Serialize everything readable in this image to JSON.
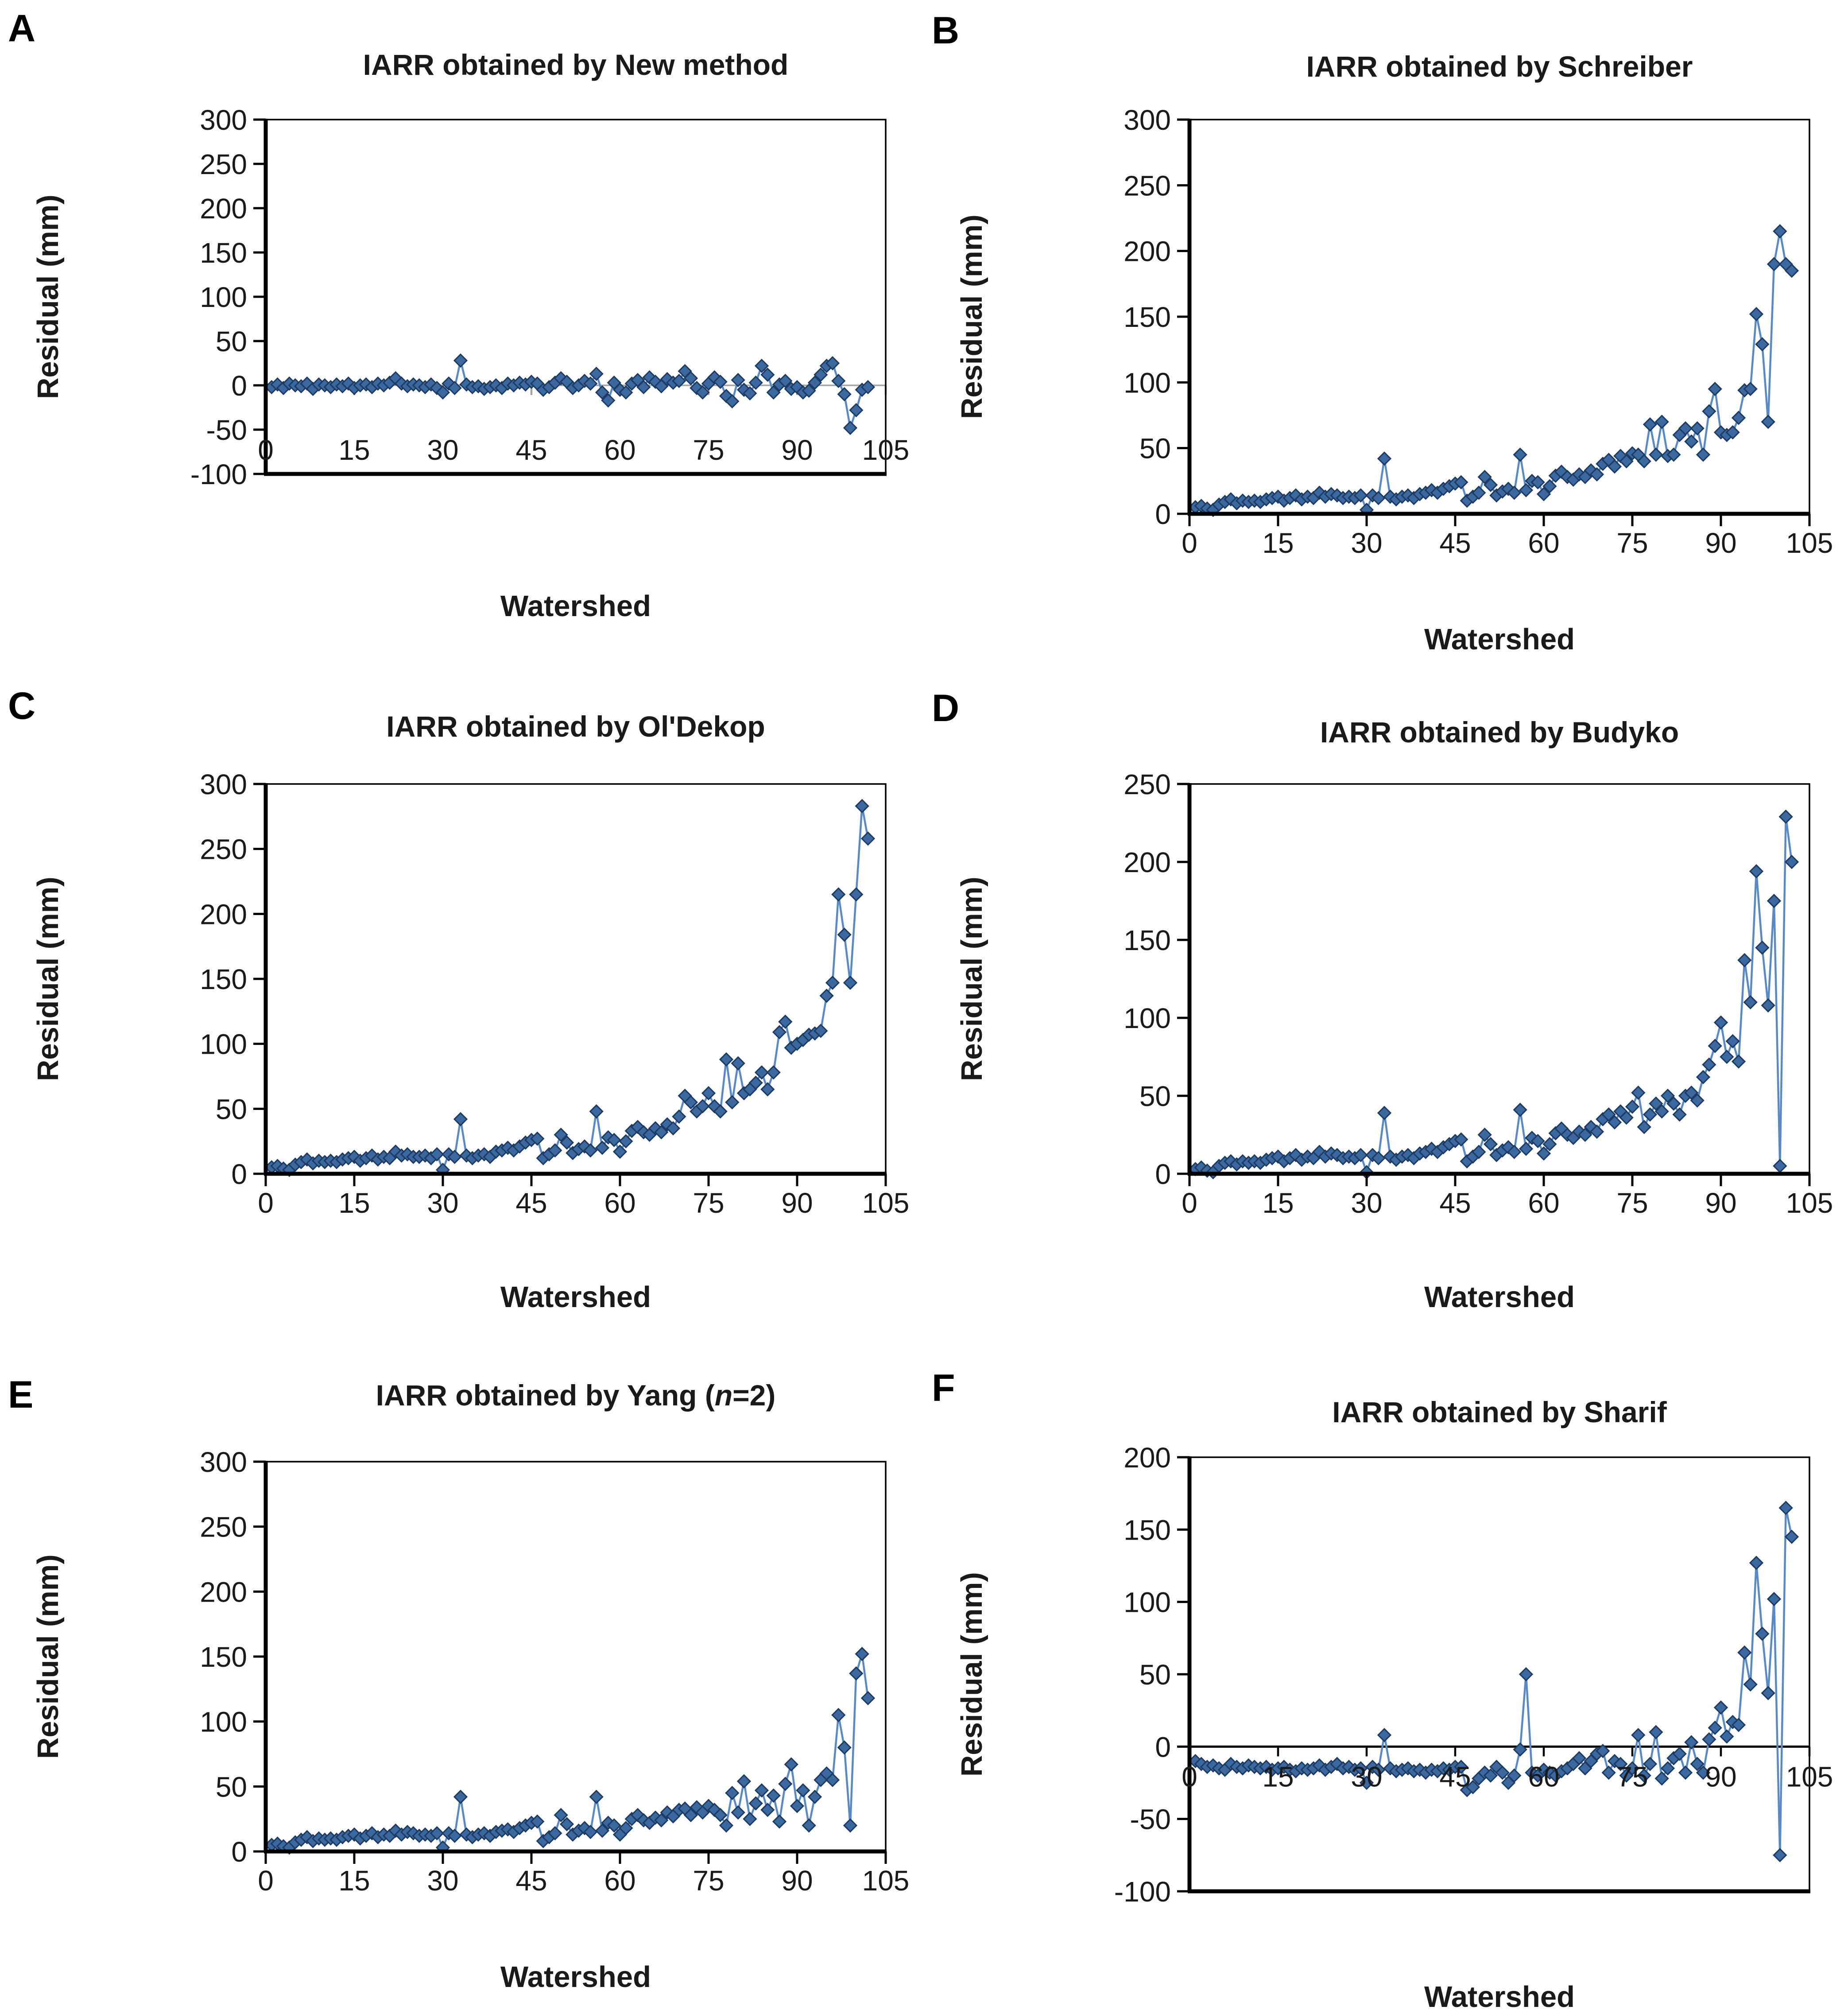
{
  "figure": {
    "type": "multi-panel residual plots",
    "panels_count": 6,
    "xlabel_shared": "Watershed",
    "ylabel_shared": "Residual (mm)"
  },
  "chart_style": {
    "line_color": "#5A8AC6",
    "marker_fill": "#3A689F",
    "marker_border": "#1D3A63",
    "marker_shape": "diamond",
    "axis_color": "#000000",
    "text_color": "#1a1a1a",
    "zero_line_gray": "#A6A6A6",
    "background": "#ffffff"
  },
  "chart_data": [
    {
      "panel": "A",
      "type": "line",
      "title": "IARR obtained by New method",
      "ylabel": "Residual (mm)",
      "xlabel": "Watershed",
      "ylim": [
        -100,
        300
      ],
      "yticks": [
        300,
        250,
        200,
        150,
        100,
        50,
        0,
        -50,
        -100
      ],
      "xlim": [
        0,
        105
      ],
      "xticks": [
        0,
        15,
        30,
        45,
        60,
        75,
        90,
        105
      ],
      "grid": false,
      "legend": false,
      "zero_line": true,
      "zero_line_color": "#A6A6A6",
      "x_label_mode": "inside-bottom",
      "x_start": 1,
      "x_step": 1,
      "values": [
        -2,
        1,
        -3,
        2,
        0,
        -1,
        2,
        -4,
        1,
        0,
        -2,
        1,
        -1,
        2,
        -3,
        0,
        1,
        -2,
        2,
        0,
        3,
        8,
        2,
        -1,
        1,
        0,
        -2,
        1,
        -3,
        -8,
        2,
        -3,
        28,
        1,
        -2,
        -1,
        -4,
        -2,
        0,
        -3,
        2,
        0,
        3,
        1,
        4,
        2,
        -5,
        -2,
        3,
        8,
        4,
        -3,
        0,
        5,
        2,
        13,
        -8,
        -17,
        3,
        -5,
        -8,
        2,
        6,
        -2,
        9,
        4,
        -1,
        7,
        3,
        5,
        16,
        8,
        -3,
        -8,
        2,
        9,
        4,
        -12,
        -18,
        6,
        -5,
        -9,
        3,
        22,
        12,
        -8,
        1,
        5,
        -4,
        -2,
        -8,
        -6,
        3,
        12,
        22,
        25,
        5,
        -10,
        -48,
        -28,
        -5,
        -2
      ]
    },
    {
      "panel": "B",
      "type": "line",
      "title": "IARR obtained by Schreiber",
      "ylabel": "Residual (mm)",
      "xlabel": "Watershed",
      "ylim": [
        0,
        300
      ],
      "yticks": [
        300,
        250,
        200,
        150,
        100,
        50,
        0
      ],
      "xlim": [
        0,
        105
      ],
      "xticks": [
        0,
        15,
        30,
        45,
        60,
        75,
        90,
        105
      ],
      "grid": false,
      "legend": false,
      "zero_line": false,
      "x_label_mode": "outside",
      "x_start": 1,
      "x_step": 1,
      "values": [
        5,
        6,
        4,
        3,
        7,
        9,
        11,
        8,
        10,
        9,
        10,
        9,
        11,
        12,
        13,
        10,
        12,
        14,
        11,
        13,
        12,
        16,
        13,
        15,
        14,
        12,
        13,
        12,
        14,
        3,
        14,
        12,
        42,
        13,
        11,
        13,
        14,
        12,
        15,
        16,
        18,
        16,
        19,
        21,
        23,
        24,
        10,
        13,
        16,
        28,
        22,
        14,
        17,
        19,
        16,
        45,
        18,
        25,
        24,
        15,
        21,
        29,
        32,
        28,
        26,
        30,
        28,
        33,
        30,
        38,
        41,
        36,
        44,
        40,
        46,
        45,
        40,
        68,
        45,
        70,
        44,
        45,
        60,
        65,
        55,
        65,
        45,
        78,
        95,
        62,
        60,
        62,
        73,
        94,
        95,
        152,
        129,
        70,
        190,
        215,
        190,
        185
      ]
    },
    {
      "panel": "C",
      "type": "line",
      "title": "IARR obtained by Ol'Dekop",
      "ylabel": "Residual (mm)",
      "xlabel": "Watershed",
      "ylim": [
        0,
        300
      ],
      "yticks": [
        300,
        250,
        200,
        150,
        100,
        50,
        0
      ],
      "xlim": [
        0,
        105
      ],
      "xticks": [
        0,
        15,
        30,
        45,
        60,
        75,
        90,
        105
      ],
      "grid": false,
      "legend": false,
      "zero_line": false,
      "x_label_mode": "outside",
      "x_start": 1,
      "x_step": 1,
      "values": [
        5,
        6,
        4,
        3,
        7,
        9,
        11,
        8,
        10,
        9,
        10,
        9,
        11,
        12,
        13,
        10,
        12,
        14,
        11,
        13,
        12,
        17,
        14,
        15,
        13,
        13,
        14,
        12,
        15,
        3,
        15,
        13,
        42,
        14,
        12,
        14,
        15,
        13,
        17,
        18,
        20,
        18,
        21,
        24,
        26,
        27,
        12,
        15,
        18,
        30,
        24,
        16,
        19,
        21,
        18,
        48,
        20,
        28,
        26,
        17,
        25,
        33,
        36,
        32,
        30,
        35,
        32,
        38,
        35,
        44,
        60,
        55,
        48,
        52,
        62,
        52,
        48,
        88,
        55,
        85,
        62,
        65,
        70,
        78,
        65,
        78,
        109,
        117,
        97,
        100,
        103,
        107,
        108,
        110,
        137,
        147,
        215,
        184,
        147,
        215,
        283,
        258
      ]
    },
    {
      "panel": "D",
      "type": "line",
      "title": "IARR obtained by Budyko",
      "ylabel": "Residual  (mm)",
      "xlabel": "Watershed",
      "ylim": [
        0,
        250
      ],
      "yticks": [
        250,
        200,
        150,
        100,
        50,
        0
      ],
      "xlim": [
        0,
        105
      ],
      "xticks": [
        0,
        15,
        30,
        45,
        60,
        75,
        90,
        105
      ],
      "grid": false,
      "legend": false,
      "zero_line": false,
      "x_label_mode": "outside",
      "x_start": 1,
      "x_step": 1,
      "values": [
        3,
        4,
        2,
        1,
        5,
        7,
        8,
        6,
        8,
        7,
        8,
        7,
        9,
        10,
        11,
        8,
        10,
        12,
        9,
        11,
        10,
        14,
        11,
        13,
        12,
        10,
        11,
        10,
        12,
        1,
        12,
        10,
        39,
        11,
        9,
        11,
        12,
        10,
        13,
        14,
        16,
        14,
        17,
        19,
        21,
        22,
        8,
        11,
        14,
        25,
        19,
        12,
        15,
        17,
        14,
        41,
        16,
        23,
        21,
        13,
        19,
        26,
        29,
        25,
        23,
        27,
        25,
        30,
        27,
        35,
        38,
        33,
        40,
        36,
        43,
        52,
        30,
        38,
        45,
        40,
        50,
        45,
        38,
        50,
        52,
        47,
        62,
        70,
        82,
        97,
        75,
        85,
        72,
        137,
        110,
        194,
        145,
        108,
        175,
        5,
        229,
        200
      ]
    },
    {
      "panel": "E",
      "type": "line",
      "title": "IARR obtained by Yang (n=2)",
      "title_parts": {
        "pre": "IARR obtained by Yang (",
        "italic": "n",
        "post": "=2)"
      },
      "ylabel": "Residual (mm)",
      "xlabel": "Watershed",
      "ylim": [
        0,
        300
      ],
      "yticks": [
        300,
        250,
        200,
        150,
        100,
        50,
        0
      ],
      "xlim": [
        0,
        105
      ],
      "xticks": [
        0,
        15,
        30,
        45,
        60,
        75,
        90,
        105
      ],
      "grid": false,
      "legend": false,
      "zero_line": false,
      "x_label_mode": "outside",
      "x_start": 1,
      "x_step": 1,
      "values": [
        5,
        6,
        4,
        3,
        7,
        9,
        11,
        8,
        10,
        9,
        10,
        9,
        11,
        12,
        13,
        10,
        12,
        14,
        11,
        13,
        12,
        16,
        13,
        15,
        14,
        12,
        13,
        12,
        14,
        3,
        14,
        12,
        42,
        13,
        11,
        13,
        14,
        12,
        15,
        16,
        17,
        15,
        18,
        20,
        22,
        23,
        8,
        11,
        14,
        28,
        21,
        13,
        16,
        18,
        15,
        42,
        16,
        22,
        20,
        13,
        18,
        25,
        28,
        24,
        22,
        26,
        24,
        30,
        27,
        32,
        33,
        28,
        34,
        30,
        35,
        32,
        28,
        20,
        45,
        30,
        54,
        25,
        37,
        47,
        32,
        43,
        23,
        52,
        67,
        35,
        47,
        20,
        42,
        55,
        60,
        55,
        105,
        80,
        20,
        137,
        152,
        118
      ]
    },
    {
      "panel": "F",
      "type": "line",
      "title": "IARR obtained by Sharif",
      "ylabel": "Residual (mm)",
      "xlabel": "Watershed",
      "ylim": [
        -100,
        200
      ],
      "yticks": [
        200,
        150,
        100,
        50,
        0,
        -50,
        -100
      ],
      "xlim": [
        0,
        105
      ],
      "xticks": [
        0,
        15,
        30,
        45,
        60,
        75,
        90,
        105
      ],
      "grid": false,
      "legend": false,
      "zero_line": true,
      "zero_line_color": "#000000",
      "x_label_mode": "below-zero",
      "x_start": 1,
      "x_step": 1,
      "values": [
        -10,
        -12,
        -14,
        -13,
        -15,
        -16,
        -12,
        -14,
        -15,
        -13,
        -14,
        -15,
        -14,
        -16,
        -15,
        -14,
        -16,
        -17,
        -15,
        -16,
        -15,
        -13,
        -16,
        -14,
        -12,
        -15,
        -14,
        -16,
        -15,
        -25,
        -14,
        -16,
        8,
        -15,
        -17,
        -16,
        -15,
        -17,
        -16,
        -18,
        -16,
        -17,
        -15,
        -16,
        -14,
        -14,
        -30,
        -28,
        -22,
        -18,
        -20,
        -14,
        -18,
        -25,
        -20,
        -2,
        50,
        -18,
        -20,
        -16,
        -18,
        -20,
        -17,
        -15,
        -12,
        -8,
        -15,
        -10,
        -5,
        -3,
        -18,
        -10,
        -12,
        -20,
        -15,
        8,
        -20,
        -12,
        10,
        -22,
        -15,
        -8,
        -5,
        -18,
        3,
        -12,
        -18,
        5,
        13,
        27,
        7,
        17,
        15,
        65,
        43,
        127,
        78,
        37,
        102,
        -75,
        165,
        145
      ]
    }
  ]
}
